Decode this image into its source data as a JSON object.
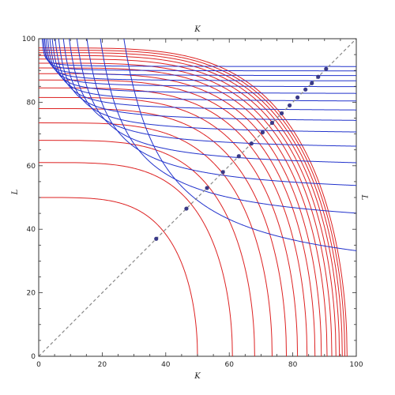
{
  "chart_data": {
    "type": "line",
    "title": "",
    "xlabel": "K",
    "ylabel": "L",
    "top_label": "K",
    "right_label": "L",
    "xlim": [
      0,
      100
    ],
    "ylim": [
      0,
      100
    ],
    "xticks": [
      "0",
      "20",
      "40",
      "60",
      "80",
      "100"
    ],
    "yticks": [
      "0",
      "20",
      "40",
      "60",
      "80",
      "100"
    ],
    "grid": false,
    "colors": {
      "red_series": "#dd2222",
      "blue_series": "#2233cc",
      "diagonal": "#888888",
      "points": "#3a3a88"
    },
    "series": [
      {
        "kind": "red-isoquant",
        "c": 50
      },
      {
        "kind": "red-isoquant",
        "c": 61
      },
      {
        "kind": "red-isoquant",
        "c": 68
      },
      {
        "kind": "red-isoquant",
        "c": 73.5
      },
      {
        "kind": "red-isoquant",
        "c": 78
      },
      {
        "kind": "red-isoquant",
        "c": 81.5
      },
      {
        "kind": "red-isoquant",
        "c": 84.5
      },
      {
        "kind": "red-isoquant",
        "c": 87
      },
      {
        "kind": "red-isoquant",
        "c": 89
      },
      {
        "kind": "red-isoquant",
        "c": 90.8
      },
      {
        "kind": "red-isoquant",
        "c": 92.3
      },
      {
        "kind": "red-isoquant",
        "c": 93.6
      },
      {
        "kind": "red-isoquant",
        "c": 94.7
      },
      {
        "kind": "red-isoquant",
        "c": 95.6
      },
      {
        "kind": "red-isoquant",
        "c": 96.4
      },
      {
        "kind": "red-isoquant",
        "c": 97.1
      },
      {
        "kind": "blue-hyperbola",
        "a": 14.5,
        "asymptote": 22
      },
      {
        "kind": "blue-hyperbola",
        "a": 10.5,
        "asymptote": 39
      },
      {
        "kind": "blue-hyperbola",
        "a": 8.2,
        "asymptote": 50
      },
      {
        "kind": "blue-hyperbola",
        "a": 6.5,
        "asymptote": 58.5
      },
      {
        "kind": "blue-hyperbola",
        "a": 5.2,
        "asymptote": 64.5
      },
      {
        "kind": "blue-hyperbola",
        "a": 4.2,
        "asymptote": 69.5
      },
      {
        "kind": "blue-hyperbola",
        "a": 3.4,
        "asymptote": 73.5
      },
      {
        "kind": "blue-hyperbola",
        "a": 2.8,
        "asymptote": 77
      },
      {
        "kind": "blue-hyperbola",
        "a": 2.3,
        "asymptote": 80
      },
      {
        "kind": "blue-hyperbola",
        "a": 1.9,
        "asymptote": 82.5
      },
      {
        "kind": "blue-hyperbola",
        "a": 1.55,
        "asymptote": 84.7
      },
      {
        "kind": "blue-hyperbola",
        "a": 1.25,
        "asymptote": 86.6
      },
      {
        "kind": "blue-hyperbola",
        "a": 1.0,
        "asymptote": 88.3
      },
      {
        "kind": "blue-hyperbola",
        "a": 0.8,
        "asymptote": 89.8
      },
      {
        "kind": "blue-hyperbola",
        "a": 0.6,
        "asymptote": 91.2
      }
    ],
    "diagonal": {
      "from": [
        0,
        0
      ],
      "to": [
        100,
        100
      ],
      "style": "dashed"
    },
    "points": [
      {
        "x": 37,
        "y": 37
      },
      {
        "x": 46.5,
        "y": 46.5
      },
      {
        "x": 53,
        "y": 53
      },
      {
        "x": 58,
        "y": 58
      },
      {
        "x": 63,
        "y": 63
      },
      {
        "x": 67,
        "y": 67
      },
      {
        "x": 70.5,
        "y": 70.5
      },
      {
        "x": 73.5,
        "y": 73.5
      },
      {
        "x": 76.5,
        "y": 76.5
      },
      {
        "x": 79,
        "y": 79
      },
      {
        "x": 81.5,
        "y": 81.5
      },
      {
        "x": 84,
        "y": 84
      },
      {
        "x": 86,
        "y": 86
      },
      {
        "x": 88,
        "y": 88
      },
      {
        "x": 90.5,
        "y": 90.5
      }
    ]
  }
}
